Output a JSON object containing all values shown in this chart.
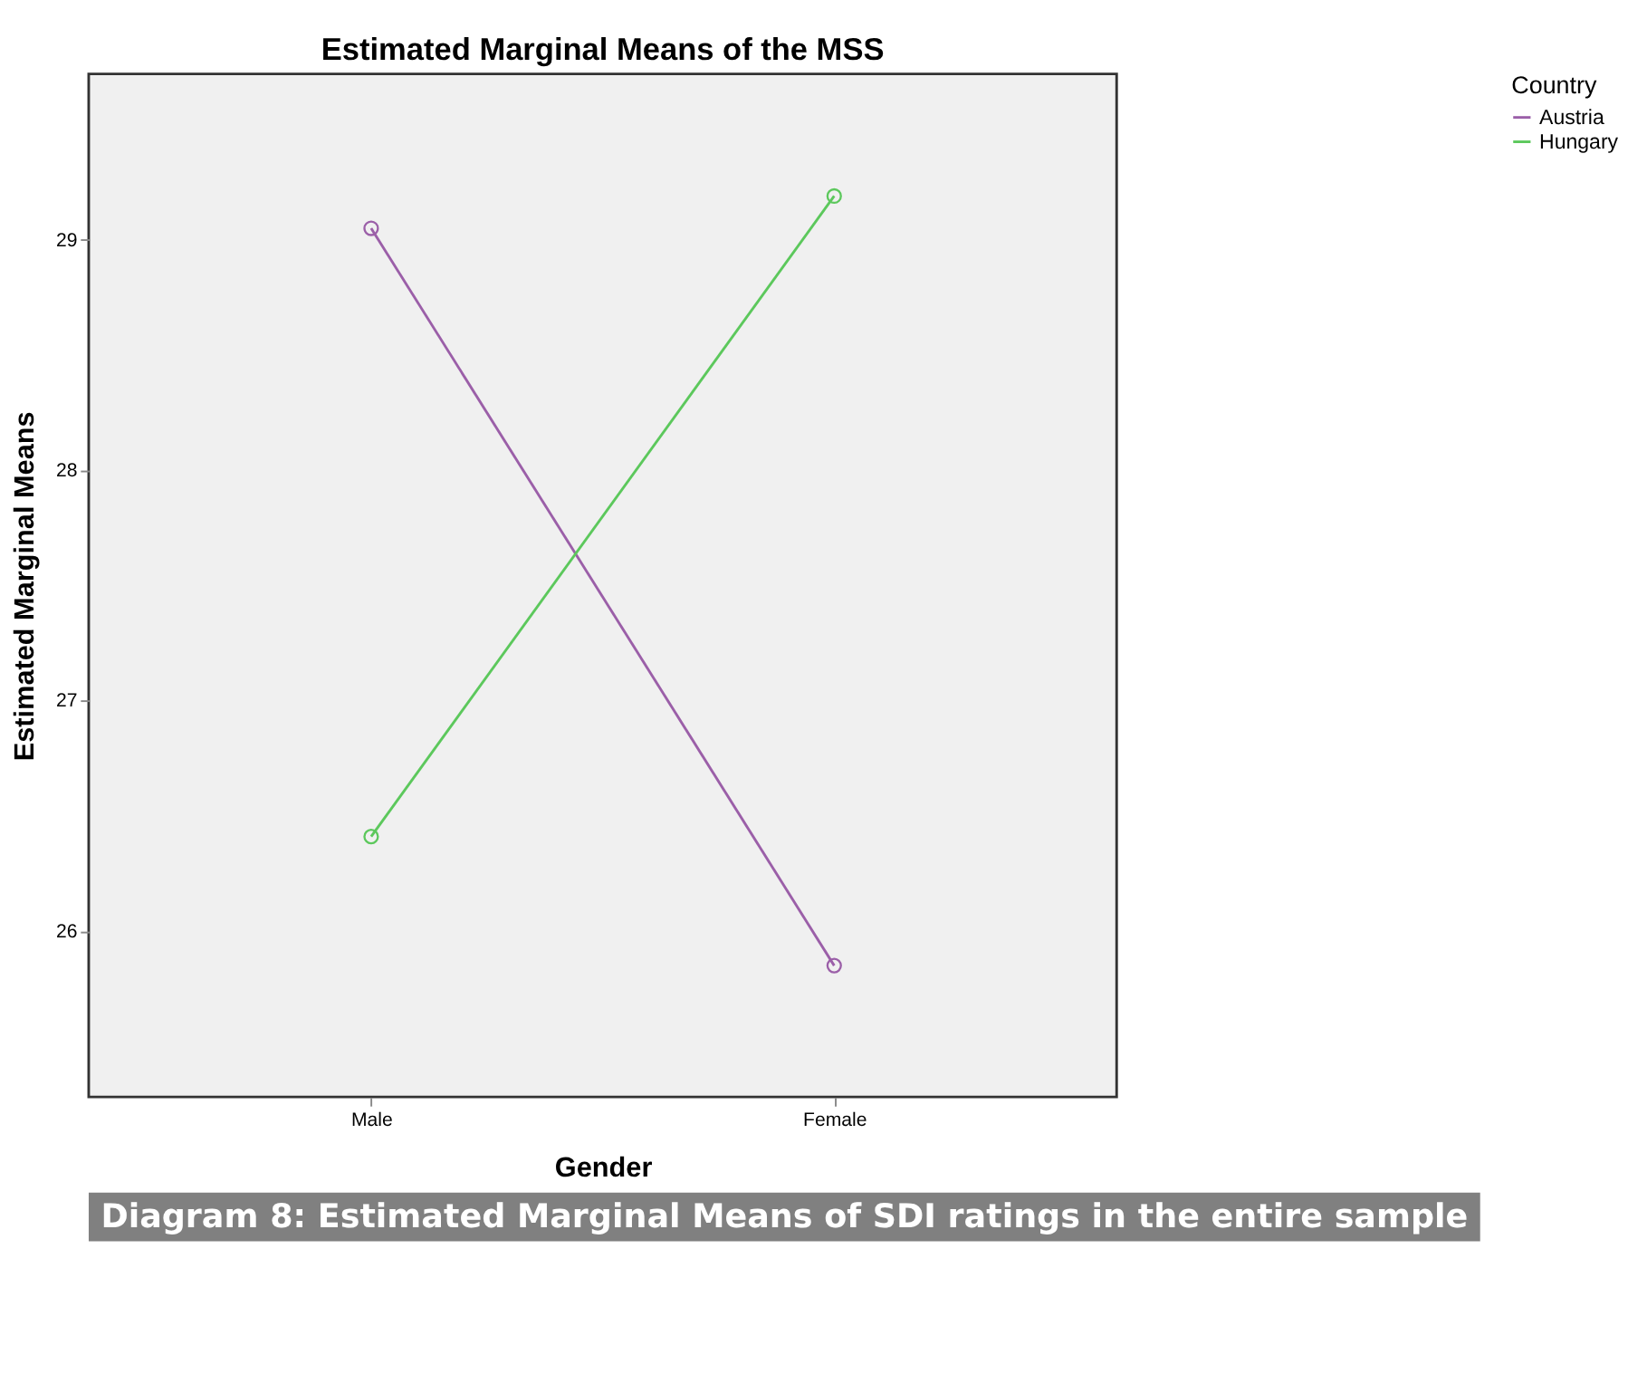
{
  "chart_data": {
    "type": "line",
    "title": "Estimated Marginal Means of the MSS",
    "xlabel": "Gender",
    "ylabel": "Estimated Marginal Means",
    "legend_title": "Country",
    "categories": [
      "Male",
      "Female"
    ],
    "series": [
      {
        "name": "Austria",
        "color": "#9b5fa8",
        "values": [
          29.05,
          25.85
        ]
      },
      {
        "name": "Hungary",
        "color": "#5cc85c",
        "values": [
          26.41,
          29.19
        ]
      }
    ],
    "ylim": [
      25.28,
      29.72
    ],
    "yticks": [
      26,
      27,
      28,
      29
    ],
    "grid": false,
    "legend": "right",
    "marker": "circle",
    "line_style": "solid",
    "annotations": [
      "Diagram 8: Estimated Marginal Means of SDI ratings in the entire sample"
    ]
  }
}
